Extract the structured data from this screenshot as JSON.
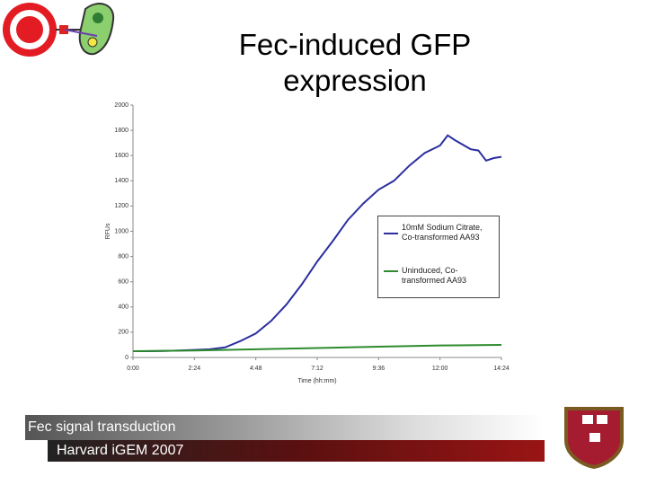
{
  "title": "Fec-induced GFP expression",
  "footer": {
    "line1": "Fec signal transduction",
    "line2": "Harvard iGEM 2007"
  },
  "chart_data": {
    "type": "line",
    "x_label": "Time (hh:mm)",
    "y_label": "RFUs",
    "xlim": [
      0,
      864
    ],
    "xticks": [
      {
        "value": 0,
        "label": "0:00"
      },
      {
        "value": 144,
        "label": "2:24"
      },
      {
        "value": 288,
        "label": "4:48"
      },
      {
        "value": 432,
        "label": "7:12"
      },
      {
        "value": 576,
        "label": "9:36"
      },
      {
        "value": 720,
        "label": "12:00"
      },
      {
        "value": 864,
        "label": "14:24"
      }
    ],
    "ylim": [
      0,
      2000
    ],
    "yticks": [
      0,
      200,
      400,
      600,
      800,
      1000,
      1200,
      1400,
      1600,
      1800,
      2000
    ],
    "legend": "right",
    "series": [
      {
        "name": "10mM Sodium Citrate, Co-transformed AA93",
        "color": "#2b2f9e",
        "x": [
          0,
          36,
          72,
          108,
          144,
          180,
          216,
          252,
          288,
          324,
          360,
          396,
          432,
          468,
          504,
          540,
          576,
          612,
          648,
          684,
          720,
          738,
          756,
          792,
          810,
          828,
          846,
          864
        ],
        "values": [
          50,
          50,
          52,
          55,
          60,
          65,
          80,
          130,
          190,
          290,
          420,
          580,
          760,
          920,
          1090,
          1220,
          1330,
          1400,
          1520,
          1620,
          1680,
          1760,
          1720,
          1650,
          1640,
          1560,
          1580,
          1590
        ]
      },
      {
        "name": "Uninduced, Co-transformed AA93",
        "color": "#2e8b2e",
        "x": [
          0,
          144,
          288,
          432,
          576,
          720,
          864
        ],
        "values": [
          50,
          55,
          65,
          75,
          85,
          95,
          100
        ]
      }
    ]
  }
}
